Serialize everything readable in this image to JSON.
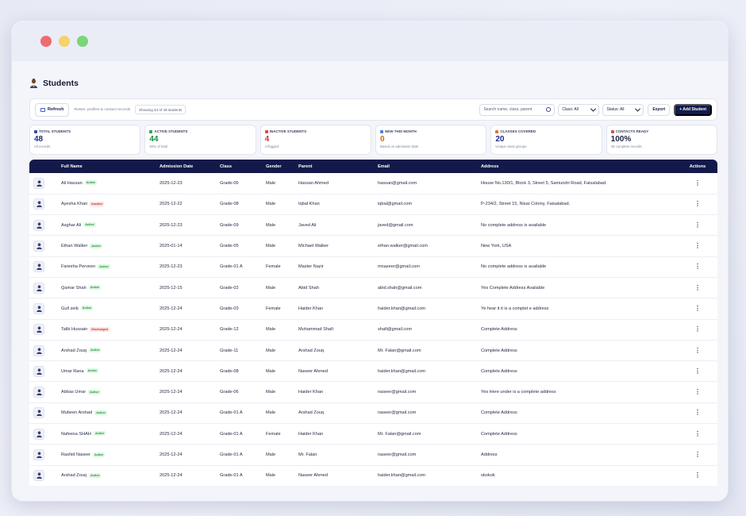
{
  "page": {
    "title": "Students"
  },
  "toolbar": {
    "refresh_label": "Refresh",
    "subtitle": "Roster, profiles & contact records",
    "showing": "Showing 44 of 48 students",
    "search_placeholder": "Search name, class, parent",
    "class_select": "Class: All",
    "status_select": "Status: All",
    "export_label": "Export",
    "add_label": "+ Add Student"
  },
  "stats": [
    {
      "label": "TOTAL STUDENTS",
      "value": "48",
      "sub": "All records",
      "color": "#1e2a8a",
      "icon_color": "#3b4aa8"
    },
    {
      "label": "ACTIVE STUDENTS",
      "value": "44",
      "sub": "92% of total",
      "color": "#1b8a3a",
      "icon_color": "#2fa650"
    },
    {
      "label": "INACTIVE STUDENTS",
      "value": "4",
      "sub": "4 flagged",
      "color": "#d0312d",
      "icon_color": "#d94b4b"
    },
    {
      "label": "NEW THIS MONTH",
      "value": "0",
      "sub": "Based on admission date",
      "color": "#d26a12",
      "icon_color": "#4f7de0"
    },
    {
      "label": "CLASSES COVERED",
      "value": "20",
      "sub": "Unique class groups",
      "color": "#1e2a8a",
      "icon_color": "#e2702f"
    },
    {
      "label": "CONTACTS READY",
      "value": "100%",
      "sub": "48 complete records",
      "color": "#1e2240",
      "icon_color": "#d94b4b"
    }
  ],
  "table": {
    "headers": [
      "",
      "Full Name",
      "Admission Date",
      "Class",
      "Gender",
      "Parent",
      "Email",
      "Address",
      "Actions"
    ],
    "rows": [
      {
        "name": "Ali Hassan",
        "status": "Active",
        "date": "2025-12-23",
        "class": "Grade-06",
        "gender": "Male",
        "parent": "Hassan Ahmed",
        "email": "hassan@gmail.com",
        "address": "House No.130/1, Block 3, Street 5, Samundri Road, Faisalabad."
      },
      {
        "name": "Ayesha Khan",
        "status": "Inactive",
        "date": "2025-12-22",
        "class": "Grade-08",
        "gender": "Male",
        "parent": "Iqbal Khan",
        "email": "iqbal@gmail.com",
        "address": "P-234/2, Street 15, Nisar Colony, Faisalabad."
      },
      {
        "name": "Asghar Ali",
        "status": "Active",
        "date": "2025-12-23",
        "class": "Grade-09",
        "gender": "Male",
        "parent": "Javed Ali",
        "email": "javed@gmail.com",
        "address": "No complete address is available"
      },
      {
        "name": "Ethan Walker",
        "status": "Active",
        "date": "2025-01-14",
        "class": "Grade-05",
        "gender": "Male",
        "parent": "Michael Walker",
        "email": "ethan.walker@gmail.com",
        "address": "New York, USA"
      },
      {
        "name": "Fareeha Perveen",
        "status": "Active",
        "date": "2025-12-23",
        "class": "Grade-01 A",
        "gender": "Female",
        "parent": "Master Nazir",
        "email": "mnazeer@gmail.com",
        "address": "No complete address is available"
      },
      {
        "name": "Qamar Shah",
        "status": "Active",
        "date": "2025-12-15",
        "class": "Grade-02",
        "gender": "Male",
        "parent": "Abid Shah",
        "email": "abid.shah@gmail.com",
        "address": "Yes Complete Address Available"
      },
      {
        "name": "Gull zeib",
        "status": "Active",
        "date": "2025-12-24",
        "class": "Grade-03",
        "gender": "Female",
        "parent": "Haider Khan",
        "email": "haider.khan@gmail.com",
        "address": "Ye hear it it is a complet e address"
      },
      {
        "name": "Talib Hussain",
        "status": "Discharged",
        "date": "2025-12-24",
        "class": "Grade-12",
        "gender": "Male",
        "parent": "Muhammad Shafi",
        "email": "shafi@gmail.com",
        "address": "Complete Address"
      },
      {
        "name": "Arshad Zouq",
        "status": "Active",
        "date": "2025-12-24",
        "class": "Grade-11",
        "gender": "Male",
        "parent": "Arshad Zouq",
        "email": "Mr. Falan@gmail.com",
        "address": "Complete Address"
      },
      {
        "name": "Umar Rana",
        "status": "Active",
        "date": "2025-12-24",
        "class": "Grade-08",
        "gender": "Male",
        "parent": "Naseer Ahmed",
        "email": "haider.khan@gmail.com",
        "address": "Complete Address"
      },
      {
        "name": "Abbas Umar",
        "status": "Active",
        "date": "2025-12-24",
        "class": "Grade-06",
        "gender": "Male",
        "parent": "Haider Khan",
        "email": "naseer@gmail.com",
        "address": "Yes Here under is a complete address"
      },
      {
        "name": "Mubeen Arshad",
        "status": "Active",
        "date": "2025-12-24",
        "class": "Grade-01 A",
        "gender": "Male",
        "parent": "Arshad Zouq",
        "email": "naseer@gmail.com",
        "address": "Complete Address"
      },
      {
        "name": "Nafeesa SHAH",
        "status": "Active",
        "date": "2025-12-24",
        "class": "Grade-01 A",
        "gender": "Female",
        "parent": "Haider Khan",
        "email": "Mr. Falan@gmail.com",
        "address": "Complete Address"
      },
      {
        "name": "Rashid Naseer",
        "status": "Active",
        "date": "2025-12-24",
        "class": "Grade-01 A",
        "gender": "Male",
        "parent": "Mr. Falan",
        "email": "naseer@gmail.com",
        "address": "Address"
      },
      {
        "name": "Arshad Zouq",
        "status": "Active",
        "date": "2025-12-24",
        "class": "Grade-01 A",
        "gender": "Male",
        "parent": "Naseer Ahmed",
        "email": "haider.khan@gmail.com",
        "address": "okokok"
      }
    ]
  }
}
